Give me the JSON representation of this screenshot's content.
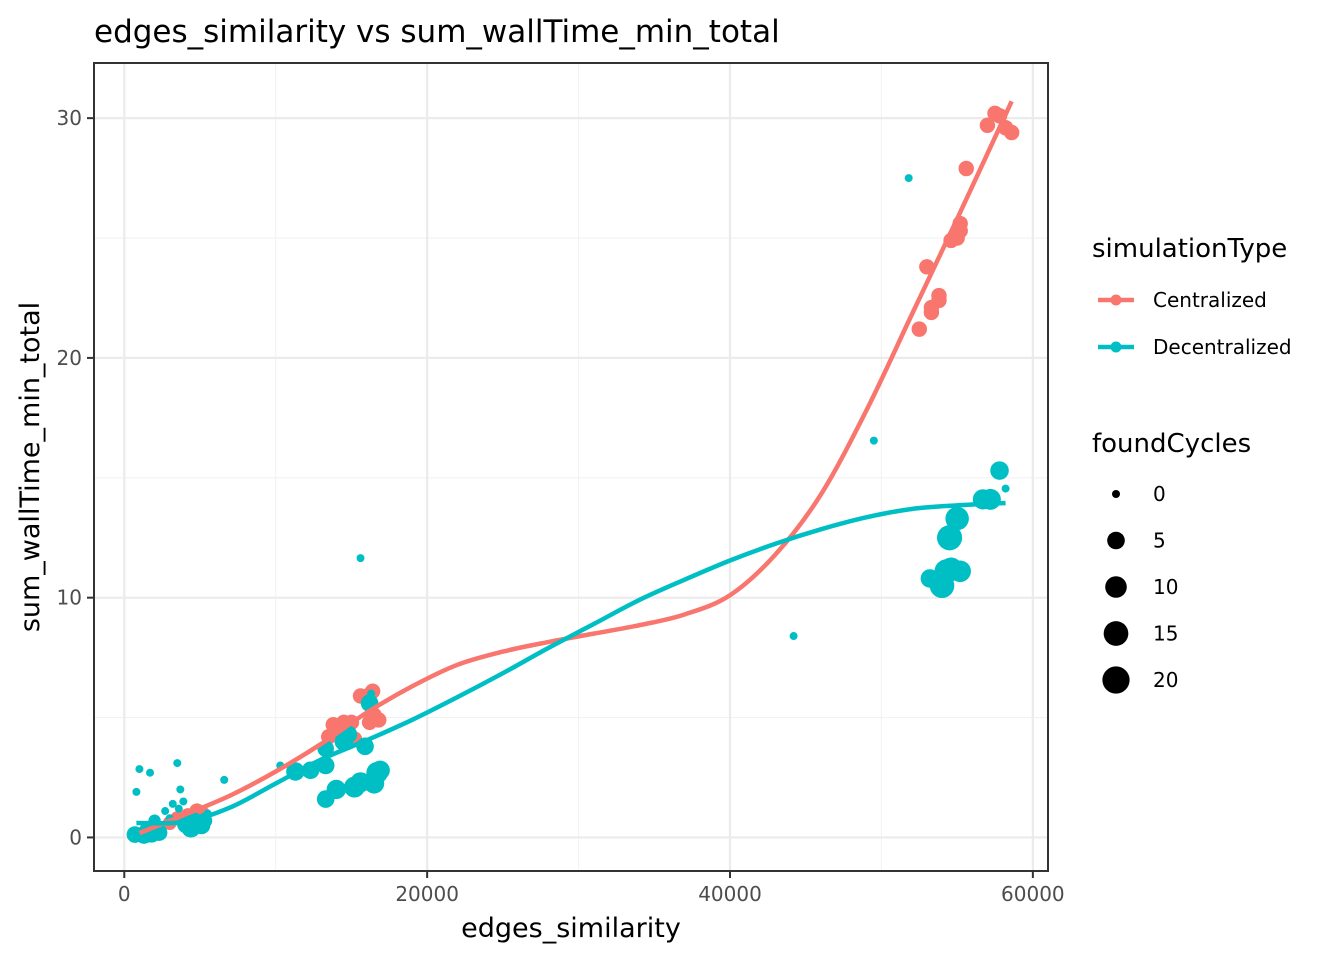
{
  "chart_data": {
    "type": "scatter",
    "title": "edges_similarity  vs  sum_wallTime_min_total",
    "xlabel": "edges_similarity",
    "ylabel": "sum_wallTime_min_total",
    "xlim": [
      -2000,
      61000
    ],
    "ylim": [
      -1.4,
      32.3
    ],
    "x_ticks": [
      0,
      20000,
      40000,
      60000
    ],
    "x_tick_labels": [
      "0",
      "20000",
      "40000",
      "60000"
    ],
    "y_ticks": [
      0,
      10,
      20,
      30
    ],
    "y_tick_labels": [
      "0",
      "10",
      "20",
      "30"
    ],
    "grid": true,
    "legend_position": "right",
    "color_legend": {
      "title": "simulationType",
      "entries": [
        "Centralized",
        "Decentralized"
      ]
    },
    "size_legend": {
      "title": "foundCycles",
      "values": [
        0,
        5,
        10,
        15,
        20
      ],
      "labels": [
        "0",
        "5",
        "10",
        "15",
        "20"
      ]
    },
    "colors": {
      "Centralized": "#F8766D",
      "Decentralized": "#00BFC4"
    },
    "series": [
      {
        "name": "Centralized",
        "color": "#F8766D",
        "points": [
          [
            1000,
            0.15,
            1
          ],
          [
            1500,
            0.25,
            2
          ],
          [
            2000,
            0.35,
            2
          ],
          [
            3000,
            0.6,
            2
          ],
          [
            3500,
            0.8,
            2
          ],
          [
            4200,
            0.9,
            3
          ],
          [
            4800,
            1.1,
            3
          ],
          [
            5200,
            0.95,
            3
          ],
          [
            13500,
            4.2,
            3
          ],
          [
            13800,
            4.7,
            3
          ],
          [
            14500,
            4.8,
            3
          ],
          [
            15000,
            4.8,
            3
          ],
          [
            15200,
            4.1,
            3
          ],
          [
            15600,
            5.9,
            3
          ],
          [
            16200,
            5.95,
            3
          ],
          [
            16400,
            6.1,
            3
          ],
          [
            16500,
            5.1,
            3
          ],
          [
            16800,
            4.9,
            3
          ],
          [
            16200,
            4.8,
            3
          ],
          [
            52500,
            21.2,
            3
          ],
          [
            53000,
            23.8,
            3
          ],
          [
            53300,
            21.9,
            3
          ],
          [
            53300,
            22.1,
            3
          ],
          [
            53800,
            22.4,
            3
          ],
          [
            53800,
            22.6,
            3
          ],
          [
            54600,
            24.9,
            3
          ],
          [
            55000,
            25.0,
            3
          ],
          [
            55200,
            25.6,
            3
          ],
          [
            55200,
            25.3,
            3
          ],
          [
            55600,
            27.9,
            3
          ],
          [
            57000,
            29.7,
            3
          ],
          [
            57500,
            30.2,
            3
          ],
          [
            57800,
            30.1,
            3
          ],
          [
            58200,
            29.6,
            3
          ],
          [
            58600,
            29.4,
            3
          ]
        ]
      },
      {
        "name": "Decentralized",
        "color": "#00BFC4",
        "points": [
          [
            700,
            0.12,
            4
          ],
          [
            800,
            1.9,
            0
          ],
          [
            1000,
            2.85,
            0
          ],
          [
            1300,
            0.1,
            5
          ],
          [
            1500,
            0.3,
            3
          ],
          [
            1700,
            2.7,
            0
          ],
          [
            1800,
            0.15,
            5
          ],
          [
            2000,
            0.7,
            1
          ],
          [
            2300,
            0.2,
            4
          ],
          [
            2700,
            1.1,
            0
          ],
          [
            3000,
            0.8,
            0
          ],
          [
            3200,
            1.4,
            0
          ],
          [
            3500,
            3.1,
            0
          ],
          [
            3600,
            1.2,
            0
          ],
          [
            3700,
            2.0,
            0
          ],
          [
            3900,
            1.5,
            0
          ],
          [
            4100,
            0.55,
            6
          ],
          [
            4400,
            0.4,
            7
          ],
          [
            4600,
            0.7,
            4
          ],
          [
            4900,
            0.6,
            3
          ],
          [
            5100,
            0.5,
            5
          ],
          [
            5300,
            0.7,
            3
          ],
          [
            5500,
            1.0,
            0
          ],
          [
            6600,
            2.4,
            0
          ],
          [
            10300,
            3.0,
            0
          ],
          [
            11300,
            2.75,
            6
          ],
          [
            12300,
            2.8,
            5
          ],
          [
            13300,
            3.7,
            4
          ],
          [
            13300,
            3.0,
            5
          ],
          [
            13300,
            1.6,
            5
          ],
          [
            14000,
            2.0,
            7
          ],
          [
            14500,
            4.0,
            6
          ],
          [
            14800,
            4.3,
            5
          ],
          [
            15200,
            2.1,
            9
          ],
          [
            15600,
            2.3,
            8
          ],
          [
            15600,
            11.65,
            0
          ],
          [
            15900,
            3.8,
            5
          ],
          [
            16200,
            5.6,
            5
          ],
          [
            16300,
            6.0,
            0
          ],
          [
            16500,
            2.25,
            8
          ],
          [
            16700,
            2.7,
            10
          ],
          [
            16900,
            2.8,
            7
          ],
          [
            44200,
            8.4,
            0
          ],
          [
            49500,
            16.55,
            0
          ],
          [
            51800,
            27.5,
            0
          ],
          [
            53200,
            10.8,
            6
          ],
          [
            54000,
            10.5,
            15
          ],
          [
            54300,
            11.1,
            14
          ],
          [
            54500,
            12.5,
            16
          ],
          [
            54600,
            11.2,
            12
          ],
          [
            55000,
            13.3,
            13
          ],
          [
            55200,
            11.1,
            10
          ],
          [
            56700,
            14.1,
            8
          ],
          [
            57200,
            14.1,
            9
          ],
          [
            57800,
            15.3,
            6
          ],
          [
            58200,
            14.55,
            0
          ]
        ]
      }
    ],
    "smooth": [
      {
        "name": "Centralized",
        "color": "#F8766D",
        "x": [
          1000,
          4000,
          7000,
          10000,
          13000,
          16000,
          19000,
          22000,
          25000,
          28000,
          31000,
          34000,
          37000,
          40000,
          43000,
          46000,
          49000,
          52000,
          55000,
          58600
        ],
        "y": [
          0.18,
          0.95,
          1.75,
          2.75,
          3.9,
          5.2,
          6.3,
          7.2,
          7.75,
          8.15,
          8.5,
          8.85,
          9.3,
          10.1,
          11.8,
          14.3,
          17.8,
          21.8,
          25.8,
          30.7
        ]
      },
      {
        "name": "Decentralized",
        "color": "#00BFC4",
        "x": [
          800,
          4000,
          7000,
          10000,
          13000,
          16000,
          19000,
          22000,
          25000,
          28000,
          31000,
          34000,
          37000,
          40000,
          43000,
          46000,
          49000,
          52000,
          55000,
          58200
        ],
        "y": [
          0.6,
          0.65,
          1.25,
          2.25,
          3.25,
          4.05,
          4.9,
          5.85,
          6.85,
          7.9,
          8.9,
          9.9,
          10.75,
          11.55,
          12.25,
          12.85,
          13.35,
          13.7,
          13.85,
          13.95
        ]
      }
    ]
  }
}
